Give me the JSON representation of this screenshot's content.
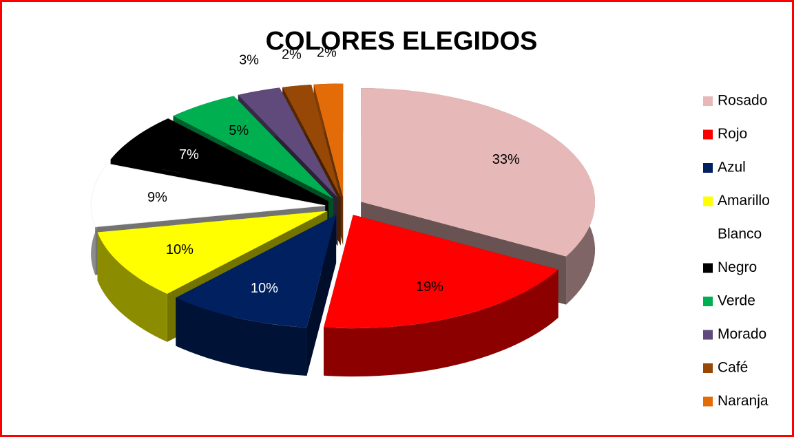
{
  "chart_data": {
    "type": "pie3d",
    "title": "COLORES ELEGIDOS",
    "categories": [
      "Rosado",
      "Rojo",
      "Azul",
      "Amarillo",
      "Blanco",
      "Negro",
      "Verde",
      "Morado",
      "Café",
      "Naranja"
    ],
    "values": [
      33,
      19,
      10,
      10,
      9,
      7,
      5,
      3,
      2,
      2
    ],
    "value_labels": [
      "33%",
      "19%",
      "10%",
      "10%",
      "9%",
      "7%",
      "5%",
      "3%",
      "2%",
      "2%"
    ],
    "colors": [
      "#e6b8b7",
      "#ff0000",
      "#002060",
      "#ffff00",
      "#ffffff",
      "#000000",
      "#00b050",
      "#604a7b",
      "#974706",
      "#e36c09"
    ],
    "legend": "right"
  }
}
